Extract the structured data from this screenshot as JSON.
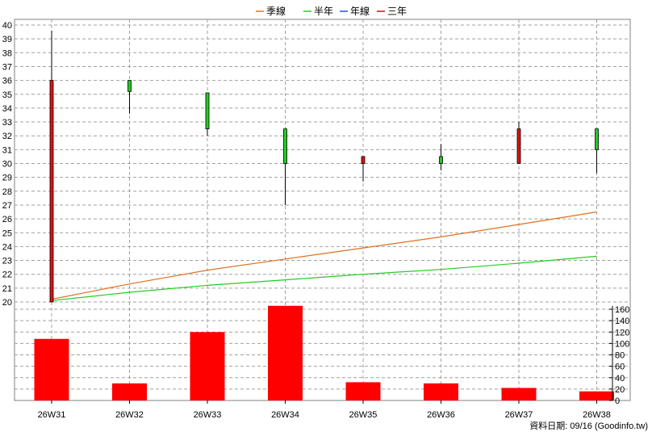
{
  "legend": [
    {
      "label": "季線",
      "color": "#e07020"
    },
    {
      "label": "半年",
      "color": "#22cc22"
    },
    {
      "label": "年線",
      "color": "#2255cc"
    },
    {
      "label": "三年",
      "color": "#cc1111"
    }
  ],
  "footer": "資料日期: 09/16  (Goodinfo.tw)",
  "chart_data": {
    "type": "candlestick",
    "categories": [
      "26W31",
      "26W32",
      "26W33",
      "26W34",
      "26W35",
      "26W36",
      "26W37",
      "26W38"
    ],
    "price_axis": {
      "min": 20,
      "max": 40,
      "ticks": [
        20,
        21,
        22,
        23,
        24,
        25,
        26,
        27,
        28,
        29,
        30,
        31,
        32,
        33,
        34,
        35,
        36,
        37,
        38,
        39,
        40
      ]
    },
    "volume_axis": {
      "min": 0,
      "max": 160,
      "ticks": [
        0,
        20,
        40,
        60,
        80,
        100,
        120,
        140,
        160
      ]
    },
    "candles": [
      {
        "open": 20.0,
        "close": 36.0,
        "high": 39.6,
        "low": 20.0
      },
      {
        "open": 36.0,
        "close": 35.2,
        "high": 36.0,
        "low": 33.6
      },
      {
        "open": 35.1,
        "close": 32.5,
        "high": 35.1,
        "low": 32.0
      },
      {
        "open": 32.5,
        "close": 30.0,
        "high": 32.5,
        "low": 27.0
      },
      {
        "open": 30.0,
        "close": 30.5,
        "high": 30.5,
        "low": 28.7
      },
      {
        "open": 30.5,
        "close": 30.0,
        "high": 31.4,
        "low": 29.5
      },
      {
        "open": 30.0,
        "close": 32.5,
        "high": 33.0,
        "low": 30.0
      },
      {
        "open": 32.5,
        "close": 31.0,
        "high": 32.5,
        "low": 29.3
      }
    ],
    "volume": [
      108,
      30,
      120,
      167,
      32,
      30,
      22,
      16
    ],
    "series": [
      {
        "name": "季線",
        "values": [
          20.2,
          21.3,
          22.3,
          23.1,
          23.9,
          24.7,
          25.6,
          26.5
        ]
      },
      {
        "name": "半年",
        "values": [
          20.1,
          20.7,
          21.2,
          21.6,
          22.0,
          22.35,
          22.8,
          23.3
        ]
      }
    ],
    "grid": true
  }
}
